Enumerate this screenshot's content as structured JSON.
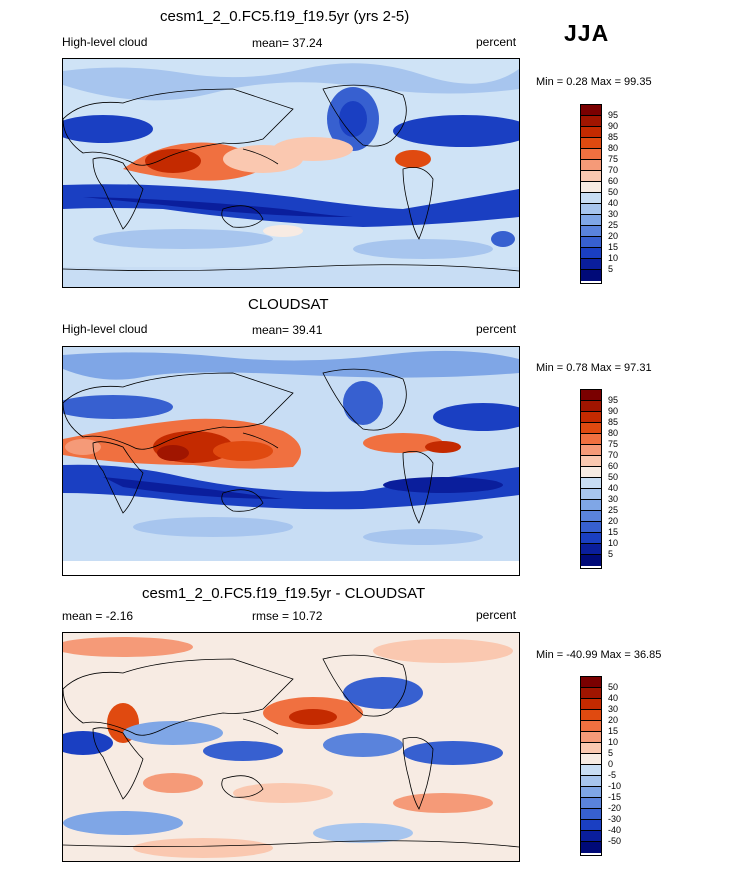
{
  "season": "JJA",
  "panels": [
    {
      "title": "cesm1_2_0.FC5.f19_f19.5yr (yrs 2-5)",
      "left_label": "High-level cloud",
      "center_label": "mean=  37.24",
      "right_label": "percent",
      "minmax": "Min =   0.28 Max =  99.35",
      "levels": [
        "95",
        "90",
        "85",
        "80",
        "75",
        "70",
        "60",
        "50",
        "40",
        "30",
        "25",
        "20",
        "15",
        "10",
        "5"
      ]
    },
    {
      "title": "CLOUDSAT",
      "left_label": "High-level cloud",
      "center_label": "mean=  39.41",
      "right_label": "percent",
      "minmax": "Min =   0.78 Max =  97.31",
      "levels": [
        "95",
        "90",
        "85",
        "80",
        "75",
        "70",
        "60",
        "50",
        "40",
        "30",
        "25",
        "20",
        "15",
        "10",
        "5"
      ]
    },
    {
      "title": "cesm1_2_0.FC5.f19_f19.5yr - CLOUDSAT",
      "left_label": "mean =  -2.16",
      "center_label": "rmse =  10.72",
      "right_label": "percent",
      "minmax": "Min = -40.99 Max =  36.85",
      "levels": [
        "50",
        "40",
        "30",
        "20",
        "15",
        "10",
        "5",
        "0",
        "-5",
        "-10",
        "-15",
        "-20",
        "-30",
        "-40",
        "-50"
      ]
    }
  ],
  "colors": {
    "scale": [
      "#7a0000",
      "#a01500",
      "#c42a00",
      "#e04a10",
      "#f07040",
      "#f59a78",
      "#fac8b0",
      "#f7ebe3",
      "#c8ddf4",
      "#a7c5ee",
      "#7fa6e6",
      "#5a83dc",
      "#3760d0",
      "#1a3fc2",
      "#0a1e9c",
      "#000a78"
    ]
  }
}
